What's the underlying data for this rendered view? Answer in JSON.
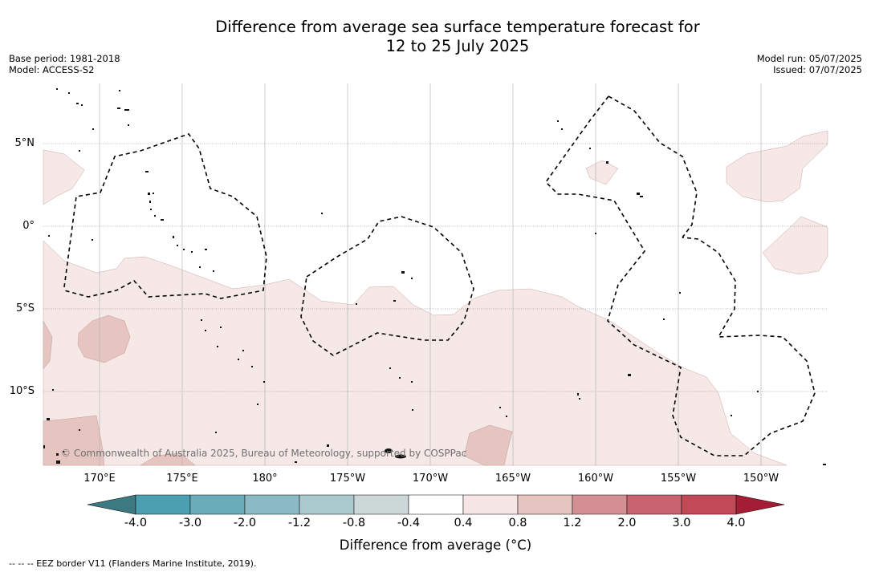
{
  "title_line1": "Difference from average sea surface temperature forecast for",
  "title_line2": "12 to 25 July 2025",
  "base_period": "Base period: 1981-2018",
  "model": "Model: ACCESS-S2",
  "model_run": "Model run: 05/07/2025",
  "issued": "Issued: 07/07/2025",
  "lat_labels": [
    "5°N",
    "0°",
    "5°S",
    "10°S"
  ],
  "lon_labels": [
    "170°E",
    "175°E",
    "180°",
    "175°W",
    "170°W",
    "165°W",
    "160°W",
    "155°W",
    "150°W"
  ],
  "credit": "© Commonwealth of Australia 2025, Bureau of Meteorology, supported by COSPPac",
  "colorbar": {
    "ticks": [
      "-4.0",
      "-3.0",
      "-2.0",
      "-1.2",
      "-0.8",
      "-0.4",
      "0.4",
      "0.8",
      "1.2",
      "2.0",
      "3.0",
      "4.0"
    ],
    "colors": [
      "#3a7a80",
      "#4aa0b0",
      "#6aacba",
      "#8bbac4",
      "#a9c9cc",
      "#ccd8d8",
      "#ffffff",
      "#f5e6e5",
      "#e6c4c0",
      "#d48f94",
      "#c96370",
      "#c04a58",
      "#a51c35"
    ],
    "label": "Difference from average (°C)"
  },
  "eez_legend": "--  --  -- EEZ border V11 (Flanders Marine Institute, 2019)."
}
